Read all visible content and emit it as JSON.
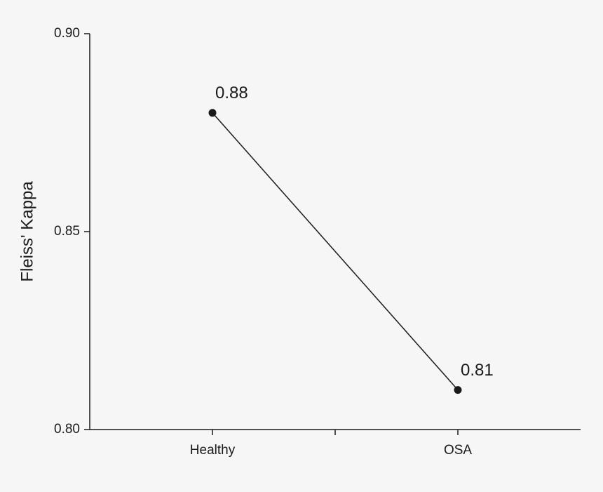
{
  "chart_data": {
    "type": "line",
    "y_label": "Fleiss' Kappa",
    "categories": [
      "Healthy",
      "OSA"
    ],
    "values": [
      0.88,
      0.81
    ],
    "color": "#1a1a1a",
    "ylim": [
      0.8,
      0.9
    ],
    "yticks": [
      {
        "value": 0.8,
        "label": "0.80"
      },
      0.85,
      {
        "value": 0.9,
        "label": "0.90"
      }
    ],
    "grid": false
  }
}
